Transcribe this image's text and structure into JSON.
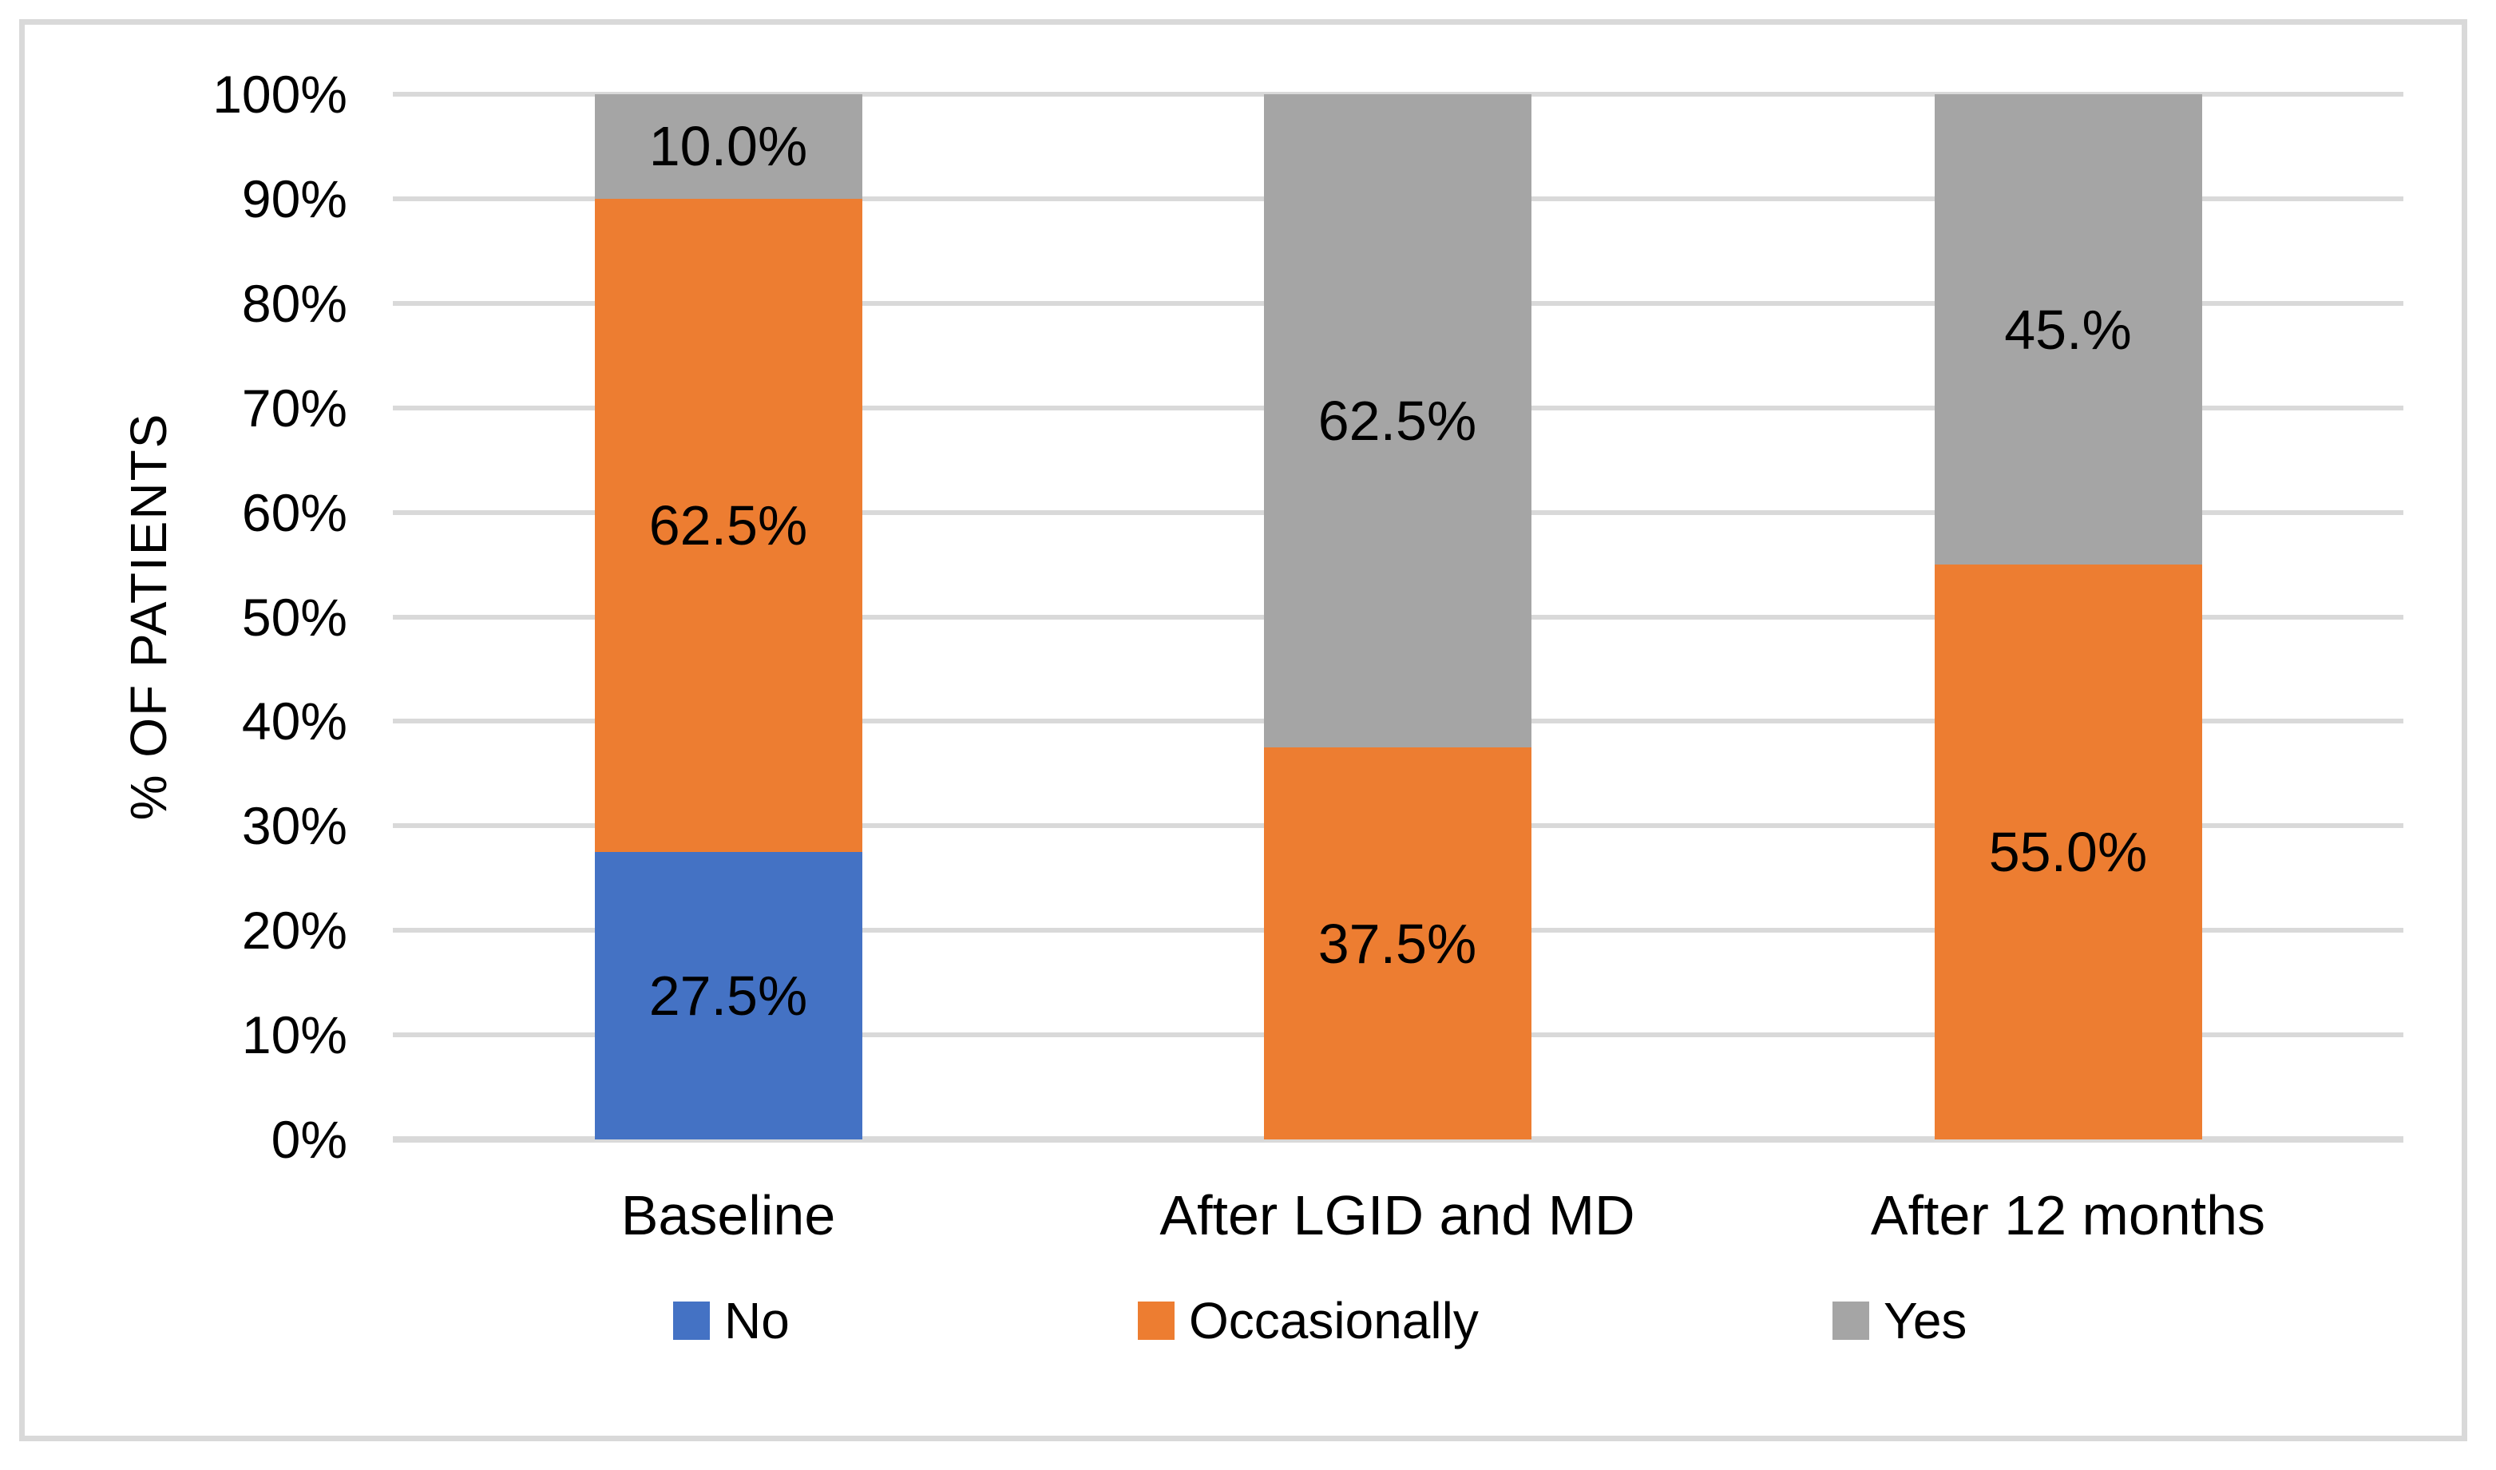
{
  "chart_data": {
    "type": "bar",
    "stacked": true,
    "title": "",
    "categories": [
      "Baseline",
      "After LGID and MD",
      "After 12 months"
    ],
    "series": [
      {
        "name": "No",
        "color": "#4472C4",
        "values": [
          27.5,
          0.0,
          0.0
        ],
        "data_labels": [
          "27.5%",
          "",
          ""
        ]
      },
      {
        "name": "Occasionally",
        "color": "#ED7D31",
        "values": [
          62.5,
          37.5,
          55.0
        ],
        "data_labels": [
          "62.5%",
          "37.5%",
          "55.0%"
        ]
      },
      {
        "name": "Yes",
        "color": "#A5A5A5",
        "values": [
          10.0,
          62.5,
          45.0
        ],
        "data_labels": [
          "10.0%",
          "62.5%",
          "45.%"
        ]
      }
    ],
    "xlabel": "",
    "ylabel": "% OF PATIENTS",
    "ylim": [
      0,
      100
    ],
    "yticks": [
      "0%",
      "10%",
      "20%",
      "30%",
      "40%",
      "50%",
      "60%",
      "70%",
      "80%",
      "90%",
      "100%"
    ],
    "grid": true,
    "legend_position": "bottom",
    "colors": {
      "gridline": "#D9D9D9",
      "axis_line": "#D9D9D9",
      "frame_border": "#D9D9D9",
      "text": "#000000",
      "background": "#FFFFFF"
    }
  }
}
